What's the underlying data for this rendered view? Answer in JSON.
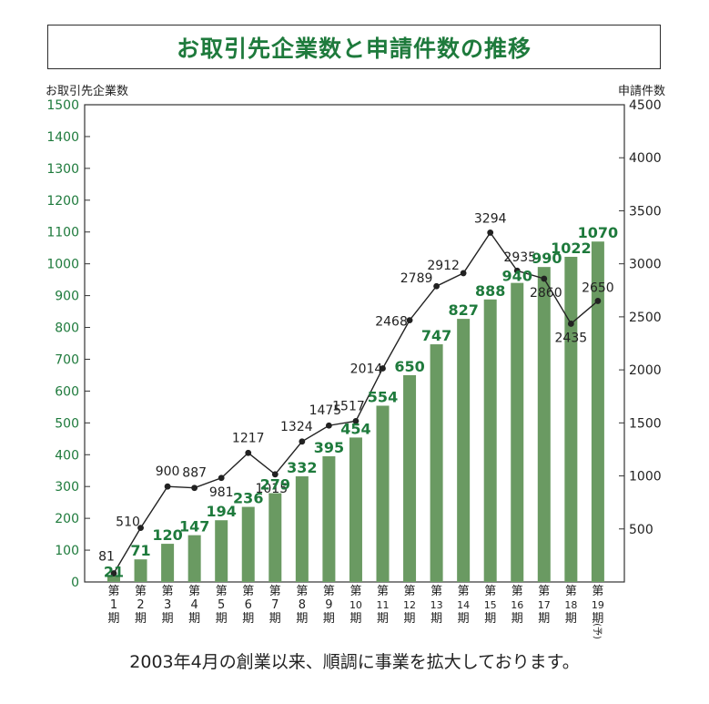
{
  "chart_data": {
    "type": "bar+line",
    "title": "お取引先企業数と申請件数の推移",
    "footnote": "2003年4月の創業以来、順調に事業を拡大しております。",
    "left_axis": {
      "label": "お取引先企業数",
      "min": 0,
      "max": 1500,
      "ticks": [
        0,
        100,
        200,
        300,
        400,
        500,
        600,
        700,
        800,
        900,
        1000,
        1100,
        1200,
        1300,
        1400,
        1500
      ]
    },
    "right_axis": {
      "label": "申請件数",
      "min": 0,
      "max": 4500,
      "ticks": [
        500,
        1000,
        1500,
        2000,
        2500,
        3000,
        3500,
        4000,
        4500
      ]
    },
    "categories": [
      [
        "第",
        "1",
        "期"
      ],
      [
        "第",
        "2",
        "期"
      ],
      [
        "第",
        "3",
        "期"
      ],
      [
        "第",
        "4",
        "期"
      ],
      [
        "第",
        "5",
        "期"
      ],
      [
        "第",
        "6",
        "期"
      ],
      [
        "第",
        "7",
        "期"
      ],
      [
        "第",
        "8",
        "期"
      ],
      [
        "第",
        "9",
        "期"
      ],
      [
        "第",
        "10",
        "期"
      ],
      [
        "第",
        "11",
        "期"
      ],
      [
        "第",
        "12",
        "期"
      ],
      [
        "第",
        "13",
        "期"
      ],
      [
        "第",
        "14",
        "期"
      ],
      [
        "第",
        "15",
        "期"
      ],
      [
        "第",
        "16",
        "期"
      ],
      [
        "第",
        "17",
        "期"
      ],
      [
        "第",
        "18",
        "期"
      ],
      [
        "第",
        "19",
        "期",
        "(予)"
      ]
    ],
    "bar_series": {
      "values": [
        21,
        71,
        120,
        147,
        194,
        236,
        279,
        332,
        395,
        454,
        554,
        650,
        747,
        827,
        888,
        940,
        990,
        1022,
        1070
      ]
    },
    "line_series": {
      "values": [
        81,
        510,
        900,
        887,
        981,
        1217,
        1015,
        1324,
        1475,
        1517,
        2014,
        2468,
        2789,
        2912,
        3294,
        2935,
        2860,
        2435,
        2650
      ]
    },
    "colors": {
      "bar": "#6a9a62",
      "bar_label": "#1e7a3c",
      "axis_text": "#1e7a3c",
      "line": "#222222",
      "right_axis_text": "#222222"
    },
    "grid": false
  }
}
